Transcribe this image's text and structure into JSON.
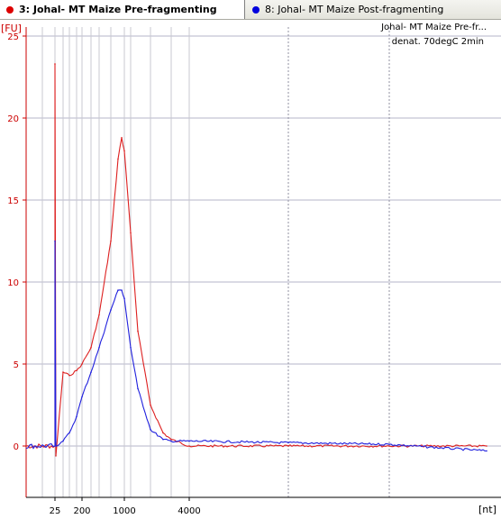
{
  "tabs": [
    {
      "label": "3: Johal- MT Maize Pre-fragmenting",
      "color": "#dd0000",
      "active": true
    },
    {
      "label": "8: Johal- MT Maize Post-fragmenting",
      "color": "#0000dd",
      "active": false
    }
  ],
  "info": {
    "line1": "Johal- MT Maize Pre-fr...",
    "line2": "denat. 70degC 2min"
  },
  "chart_data": {
    "type": "line",
    "title": "",
    "ylabel": "[FU]",
    "xlabel": "[nt]",
    "ylim": [
      -3,
      25.8
    ],
    "y_ticks": [
      0,
      5,
      10,
      15,
      20,
      25
    ],
    "x_axis_scale": "nonlinear (size ladder, electropherogram)",
    "x_tick_labels": [
      "25",
      "200",
      "1000",
      "4000"
    ],
    "grid": true,
    "series": [
      {
        "name": "3: Johal- MT Maize Pre-fragmenting",
        "color": "#dd2020",
        "x": [
          25,
          28,
          50,
          100,
          150,
          200,
          300,
          400,
          600,
          800,
          900,
          1000,
          1200,
          1500,
          2000,
          2500,
          3000,
          4000,
          6000,
          8000,
          10000
        ],
        "y": [
          23.3,
          -0.6,
          4.5,
          4.3,
          4.6,
          5.0,
          6.0,
          8.0,
          12.5,
          17.5,
          18.8,
          18.0,
          13.0,
          7.0,
          2.5,
          0.8,
          0.4,
          0.0,
          0.0,
          0.0,
          0.0
        ]
      },
      {
        "name": "8: Johal- MT Maize Post-fragmenting",
        "color": "#2020dd",
        "x": [
          25,
          28,
          50,
          100,
          150,
          200,
          300,
          400,
          600,
          800,
          900,
          1000,
          1200,
          1500,
          2000,
          2500,
          3000,
          4000,
          6000,
          8000,
          10000
        ],
        "y": [
          12.5,
          0.0,
          0.3,
          0.8,
          1.8,
          3.0,
          4.5,
          6.0,
          8.3,
          9.5,
          9.5,
          9.0,
          6.0,
          3.5,
          1.0,
          0.4,
          0.3,
          0.3,
          0.2,
          0.1,
          -0.3
        ]
      }
    ]
  }
}
